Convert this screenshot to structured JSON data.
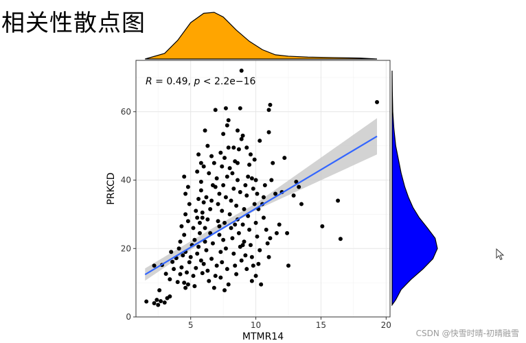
{
  "page": {
    "title": "相关性散点图",
    "watermark": "CSDN @快雪时晴-初晴融雪"
  },
  "colors": {
    "x_density_fill": "#FFA500",
    "y_density_fill": "#0000FF",
    "regression_line": "#3366FF",
    "confidence_band": "#C8C8C8",
    "point": "#000000"
  },
  "chart_data": {
    "type": "scatter",
    "xlabel": "MTMR14",
    "ylabel": "PRKCD",
    "xlim": [
      0.8,
      20.3
    ],
    "ylim": [
      0,
      75
    ],
    "x_ticks": [
      5,
      10,
      15,
      20
    ],
    "y_ticks": [
      0,
      20,
      40,
      60
    ],
    "grid": true,
    "annotation": {
      "r_label": "R",
      "r_text": " = 0.49, ",
      "p_label": "p",
      "p_text": " < 2.2e−16"
    },
    "regression": {
      "method": "lm",
      "line": [
        [
          1.5,
          12.4
        ],
        [
          19.3,
          52.8
        ]
      ],
      "ci_lower": [
        [
          1.5,
          10.6
        ],
        [
          6.8,
          24.2
        ],
        [
          10,
          31.2
        ],
        [
          19.3,
          47.5
        ]
      ],
      "ci_upper": [
        [
          1.5,
          14.2
        ],
        [
          6.8,
          26.2
        ],
        [
          10,
          33.2
        ],
        [
          19.3,
          58.1
        ]
      ]
    },
    "x_density": [
      [
        1.5,
        0.0
      ],
      [
        3.0,
        0.12
      ],
      [
        4.0,
        0.4
      ],
      [
        5.0,
        0.78
      ],
      [
        6.0,
        0.98
      ],
      [
        6.8,
        1.0
      ],
      [
        7.5,
        0.9
      ],
      [
        8.5,
        0.62
      ],
      [
        9.5,
        0.38
      ],
      [
        10.5,
        0.2
      ],
      [
        11.5,
        0.09
      ],
      [
        12.5,
        0.06
      ],
      [
        14.0,
        0.04
      ],
      [
        16.0,
        0.03
      ],
      [
        18.0,
        0.02
      ],
      [
        19.3,
        0.0
      ]
    ],
    "y_density": [
      [
        3.5,
        0.0
      ],
      [
        5.0,
        0.08
      ],
      [
        8.0,
        0.2
      ],
      [
        11.0,
        0.42
      ],
      [
        14.0,
        0.68
      ],
      [
        17.0,
        0.9
      ],
      [
        20.0,
        1.0
      ],
      [
        23.0,
        0.95
      ],
      [
        26.0,
        0.78
      ],
      [
        29.0,
        0.6
      ],
      [
        32.0,
        0.46
      ],
      [
        35.0,
        0.36
      ],
      [
        38.0,
        0.28
      ],
      [
        42.0,
        0.2
      ],
      [
        46.0,
        0.14
      ],
      [
        50.0,
        0.08
      ],
      [
        55.0,
        0.04
      ],
      [
        60.0,
        0.015
      ],
      [
        66.0,
        0.005
      ],
      [
        72.0,
        0.0
      ]
    ],
    "points": [
      [
        1.6,
        4.5
      ],
      [
        2.2,
        4.0
      ],
      [
        2.5,
        3.5
      ],
      [
        2.7,
        4.6
      ],
      [
        3.0,
        4.2
      ],
      [
        3.2,
        5.5
      ],
      [
        2.4,
        5.0
      ],
      [
        3.4,
        6.0
      ],
      [
        2.6,
        7.8
      ],
      [
        3.4,
        11.0
      ],
      [
        3.1,
        12.6
      ],
      [
        2.8,
        15.2
      ],
      [
        3.6,
        16.1
      ],
      [
        3.9,
        17.2
      ],
      [
        2.2,
        15.0
      ],
      [
        3.7,
        14.0
      ],
      [
        4.0,
        10.2
      ],
      [
        4.2,
        12.5
      ],
      [
        4.5,
        10.0
      ],
      [
        4.6,
        8.5
      ],
      [
        4.8,
        9.5
      ],
      [
        4.3,
        14.5
      ],
      [
        4.7,
        13.0
      ],
      [
        4.9,
        16.0
      ],
      [
        4.4,
        18.0
      ],
      [
        4.1,
        20.0
      ],
      [
        4.6,
        19.0
      ],
      [
        5.0,
        17.5
      ],
      [
        5.2,
        12.0
      ],
      [
        5.4,
        14.3
      ],
      [
        5.1,
        21.0
      ],
      [
        4.2,
        22.0
      ],
      [
        4.5,
        24.0
      ],
      [
        5.3,
        22.5
      ],
      [
        5.5,
        18.5
      ],
      [
        5.6,
        20.5
      ],
      [
        5.8,
        16.5
      ],
      [
        5.9,
        12.8
      ],
      [
        5.7,
        24.5
      ],
      [
        5.2,
        26.0
      ],
      [
        4.8,
        28.0
      ],
      [
        4.6,
        30.0
      ],
      [
        5.4,
        31.0
      ],
      [
        4.9,
        33.0
      ],
      [
        5.5,
        29.0
      ],
      [
        5.7,
        27.5
      ],
      [
        5.9,
        30.5
      ],
      [
        4.6,
        36.0
      ],
      [
        4.5,
        41.0
      ],
      [
        4.8,
        38.0
      ],
      [
        5.6,
        34.5
      ],
      [
        5.8,
        37.0
      ],
      [
        6.0,
        33.5
      ],
      [
        6.1,
        22.0
      ],
      [
        6.2,
        19.5
      ],
      [
        6.0,
        15.5
      ],
      [
        6.3,
        13.5
      ],
      [
        6.4,
        10.5
      ],
      [
        6.1,
        26.0
      ],
      [
        6.3,
        28.5
      ],
      [
        6.5,
        24.5
      ],
      [
        6.6,
        17.0
      ],
      [
        6.7,
        21.5
      ],
      [
        6.8,
        8.5
      ],
      [
        6.9,
        12.0
      ],
      [
        7.0,
        15.0
      ],
      [
        6.5,
        31.5
      ],
      [
        6.2,
        35.0
      ],
      [
        6.7,
        38.5
      ],
      [
        6.4,
        42.0
      ],
      [
        6.0,
        44.0
      ],
      [
        6.6,
        47.0
      ],
      [
        6.8,
        45.0
      ],
      [
        7.0,
        40.5
      ],
      [
        6.3,
        50.0
      ],
      [
        6.1,
        54.5
      ],
      [
        5.6,
        47.5
      ],
      [
        5.8,
        45.0
      ],
      [
        5.5,
        42.5
      ],
      [
        6.9,
        60.5
      ],
      [
        7.1,
        28.0
      ],
      [
        7.2,
        24.0
      ],
      [
        7.3,
        19.0
      ],
      [
        7.4,
        16.0
      ],
      [
        7.5,
        22.5
      ],
      [
        7.1,
        33.0
      ],
      [
        7.2,
        36.0
      ],
      [
        7.4,
        31.0
      ],
      [
        7.6,
        27.5
      ],
      [
        7.7,
        20.0
      ],
      [
        7.8,
        14.0
      ],
      [
        7.9,
        9.5
      ],
      [
        7.6,
        7.8
      ],
      [
        7.3,
        11.5
      ],
      [
        7.5,
        38.5
      ],
      [
        7.7,
        35.0
      ],
      [
        7.8,
        41.0
      ],
      [
        7.4,
        44.0
      ],
      [
        7.6,
        46.5
      ],
      [
        7.9,
        49.5
      ],
      [
        7.5,
        53.5
      ],
      [
        7.8,
        56.0
      ],
      [
        7.7,
        61.0
      ],
      [
        7.9,
        57.5
      ],
      [
        8.0,
        30.0
      ],
      [
        8.1,
        26.0
      ],
      [
        8.2,
        23.0
      ],
      [
        8.3,
        18.5
      ],
      [
        8.4,
        15.0
      ],
      [
        8.1,
        34.0
      ],
      [
        8.3,
        37.5
      ],
      [
        8.5,
        32.5
      ],
      [
        8.6,
        28.5
      ],
      [
        8.7,
        24.5
      ],
      [
        8.8,
        20.5
      ],
      [
        8.9,
        16.5
      ],
      [
        8.5,
        12.5
      ],
      [
        8.2,
        42.0
      ],
      [
        8.4,
        45.5
      ],
      [
        8.6,
        40.0
      ],
      [
        8.8,
        36.5
      ],
      [
        8.7,
        49.0
      ],
      [
        8.9,
        52.0
      ],
      [
        8.6,
        54.5
      ],
      [
        8.3,
        49.5
      ],
      [
        8.8,
        61.0
      ],
      [
        8.9,
        72.0
      ],
      [
        8.0,
        43.5
      ],
      [
        9.0,
        27.0
      ],
      [
        9.1,
        22.0
      ],
      [
        9.2,
        18.0
      ],
      [
        9.3,
        14.0
      ],
      [
        9.1,
        31.5
      ],
      [
        9.3,
        35.5
      ],
      [
        9.4,
        29.5
      ],
      [
        9.5,
        25.5
      ],
      [
        9.6,
        21.0
      ],
      [
        9.7,
        17.5
      ],
      [
        9.8,
        15.0
      ],
      [
        9.2,
        38.5
      ],
      [
        9.4,
        41.0
      ],
      [
        9.5,
        44.5
      ],
      [
        9.7,
        40.5
      ],
      [
        9.8,
        37.5
      ],
      [
        9.9,
        33.0
      ],
      [
        9.6,
        47.5
      ],
      [
        9.3,
        49.5
      ],
      [
        9.0,
        53.0
      ],
      [
        9.9,
        46.0
      ],
      [
        10.0,
        40.0
      ],
      [
        10.1,
        36.0
      ],
      [
        10.2,
        31.5
      ],
      [
        10.0,
        27.5
      ],
      [
        10.1,
        23.5
      ],
      [
        10.3,
        19.5
      ],
      [
        10.2,
        15.5
      ],
      [
        10.0,
        12.0
      ],
      [
        10.4,
        9.5
      ],
      [
        10.5,
        33.0
      ],
      [
        10.6,
        29.0
      ],
      [
        10.8,
        25.5
      ],
      [
        10.9,
        21.5
      ],
      [
        11.0,
        17.5
      ],
      [
        11.1,
        23.0
      ],
      [
        10.7,
        38.5
      ],
      [
        11.2,
        40.0
      ],
      [
        11.0,
        54.0
      ],
      [
        11.1,
        62.0
      ],
      [
        11.3,
        45.0
      ],
      [
        11.5,
        36.0
      ],
      [
        11.6,
        24.5
      ],
      [
        11.8,
        27.0
      ],
      [
        12.0,
        36.5
      ],
      [
        12.2,
        46.5
      ],
      [
        12.4,
        24.5
      ],
      [
        12.5,
        15.0
      ],
      [
        12.9,
        35.5
      ],
      [
        13.1,
        39.5
      ],
      [
        13.3,
        38.0
      ],
      [
        13.5,
        33.0
      ],
      [
        15.1,
        26.5
      ],
      [
        16.3,
        34.0
      ],
      [
        16.5,
        22.8
      ],
      [
        19.3,
        62.8
      ],
      [
        11.0,
        60.5
      ],
      [
        5.8,
        39.5
      ],
      [
        7.2,
        26.5
      ],
      [
        6.6,
        34.0
      ],
      [
        8.4,
        27.0
      ],
      [
        9.0,
        21.0
      ],
      [
        10.6,
        35.0
      ],
      [
        5.3,
        9.0
      ],
      [
        4.3,
        26.5
      ],
      [
        6.9,
        38.0
      ],
      [
        7.3,
        48.0
      ],
      [
        10.3,
        51.5
      ],
      [
        5.9,
        29.0
      ],
      [
        8.6,
        45.0
      ],
      [
        9.7,
        10.5
      ],
      [
        3.5,
        19.0
      ]
    ]
  }
}
